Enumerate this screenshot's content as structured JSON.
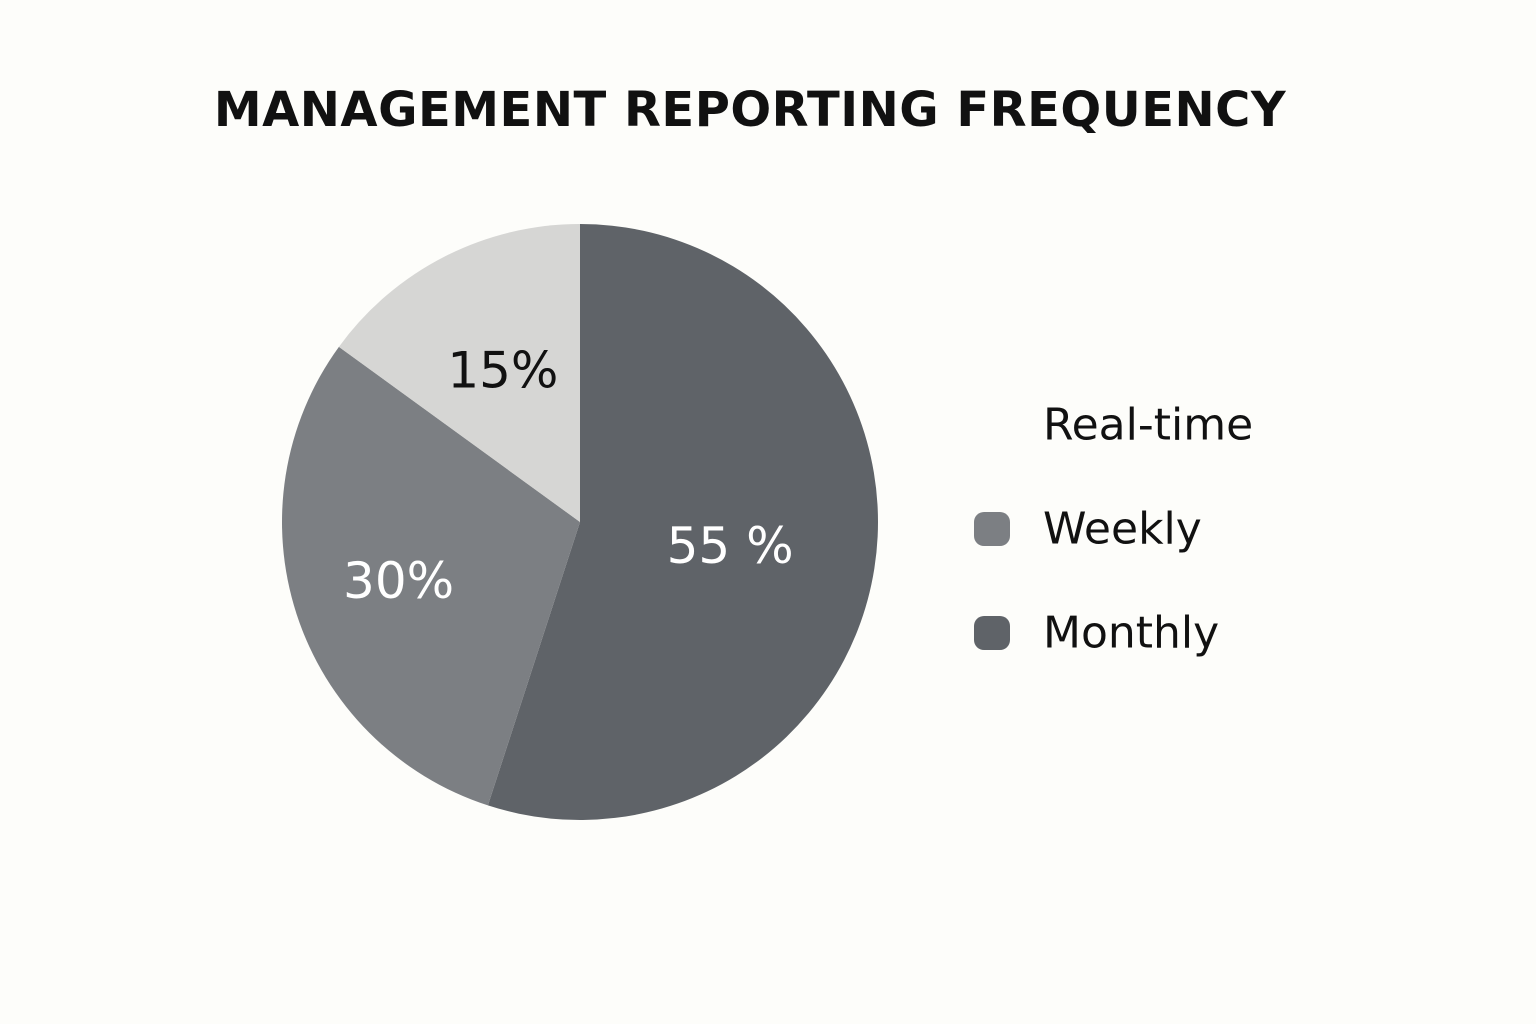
{
  "chart_data": {
    "type": "pie",
    "title": "MANAGEMENT REPORTING FREQUENCY",
    "categories": [
      "Real-time",
      "Weekly",
      "Monthly"
    ],
    "values": [
      15,
      30,
      55
    ],
    "labels": [
      "15%",
      "30%",
      "55 %"
    ],
    "legend_placement": "right",
    "colors": {
      "Real-time": "#d6d6d4",
      "Weekly": "#7c7f83",
      "Monthly": "#5f6368"
    },
    "label_colors": {
      "Real-time": "#111111",
      "Weekly": "#ffffff",
      "Monthly": "#ffffff"
    }
  }
}
